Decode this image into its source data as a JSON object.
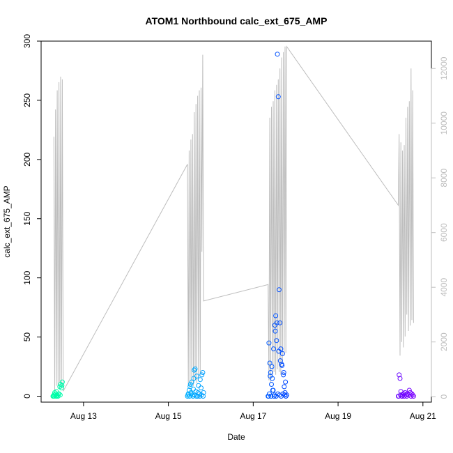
{
  "chart_data": {
    "type": "scatter",
    "title": "ATOM1 Northbound calc_ext_675_AMP",
    "xlabel": "Date",
    "ylabel": "calc_ext_675_AMP",
    "x_unit": "days in August",
    "xlim": [
      12.0,
      21.2
    ],
    "ylim": [
      -5,
      300
    ],
    "y_ticks": [
      0,
      50,
      100,
      150,
      200,
      250,
      300
    ],
    "x_ticks": [
      {
        "value": 13,
        "label": "Aug 13"
      },
      {
        "value": 15,
        "label": "Aug 15"
      },
      {
        "value": 17,
        "label": "Aug 17"
      },
      {
        "value": 19,
        "label": "Aug 19"
      },
      {
        "value": 21,
        "label": "Aug 21"
      }
    ],
    "y2lim": [
      -200,
      13000
    ],
    "y2_ticks": [
      0,
      2000,
      4000,
      6000,
      8000,
      10000,
      12000
    ],
    "grid": false,
    "colors": {
      "line": "#bdbdbd",
      "right_axis": "#bdbdbd",
      "points_start": "#00ffa6",
      "points_mid1": "#00bfff",
      "points_mid2": "#0040ff",
      "points_end": "#7a00ff"
    },
    "line_series": {
      "name": "",
      "x": [
        12.3,
        12.32,
        12.34,
        12.36,
        12.38,
        12.4,
        12.42,
        12.44,
        12.46,
        12.48,
        12.5,
        12.52,
        15.45,
        15.47,
        15.49,
        15.51,
        15.53,
        15.55,
        15.57,
        15.59,
        15.61,
        15.63,
        15.65,
        15.67,
        15.69,
        15.71,
        15.73,
        15.75,
        15.77,
        15.79,
        15.81,
        15.83,
        17.35,
        17.37,
        17.39,
        17.41,
        17.43,
        17.45,
        17.47,
        17.49,
        17.51,
        17.53,
        17.55,
        17.57,
        17.59,
        17.61,
        17.63,
        17.65,
        17.67,
        17.69,
        17.71,
        17.73,
        17.75,
        17.77,
        17.79,
        20.42,
        20.44,
        20.46,
        20.48,
        20.5,
        20.52,
        20.54,
        20.56,
        20.58,
        20.6,
        20.62,
        20.64,
        20.66,
        20.68,
        20.7,
        20.72,
        20.74,
        20.76,
        20.78
      ],
      "y": [
        9500,
        200,
        10500,
        400,
        11200,
        300,
        11500,
        500,
        11700,
        400,
        11600,
        200,
        8500,
        400,
        9000,
        300,
        9400,
        500,
        9600,
        400,
        10400,
        600,
        10700,
        500,
        11000,
        700,
        11200,
        800,
        11300,
        5300,
        12500,
        3500,
        4100,
        600,
        10200,
        500,
        10600,
        700,
        10800,
        900,
        11200,
        800,
        11400,
        1000,
        11600,
        900,
        12000,
        800,
        12400,
        1200,
        12600,
        1500,
        12800,
        1600,
        12800,
        7000,
        9600,
        1500,
        9300,
        2000,
        9000,
        1800,
        9200,
        2200,
        10200,
        3000,
        10600,
        2400,
        10800,
        2600,
        12000,
        2800,
        11200,
        2700
      ]
    },
    "scatter_series": [
      {
        "name": "",
        "x": [
          12.28,
          12.3,
          12.32,
          12.34,
          12.36,
          12.38,
          12.4,
          12.42,
          12.44,
          12.46,
          12.48,
          12.5,
          12.29,
          12.33,
          12.37,
          12.41,
          12.45,
          12.49,
          12.31,
          12.35
        ],
        "y": [
          0,
          1,
          3,
          2,
          4,
          1,
          0,
          2,
          8,
          10,
          7,
          12,
          0,
          1,
          0,
          2,
          1,
          9,
          0,
          0
        ]
      },
      {
        "name": "",
        "x": [
          15.45,
          15.47,
          15.49,
          15.51,
          15.53,
          15.55,
          15.57,
          15.59,
          15.61,
          15.63,
          15.65,
          15.67,
          15.69,
          15.71,
          15.73,
          15.75,
          15.77,
          15.79,
          15.81,
          15.83,
          15.46,
          15.5,
          15.54,
          15.58,
          15.62,
          15.66,
          15.7,
          15.74,
          15.78,
          15.82,
          15.52,
          15.6
        ],
        "y": [
          0,
          2,
          5,
          8,
          3,
          12,
          1,
          6,
          22,
          23,
          4,
          17,
          0,
          9,
          2,
          14,
          7,
          18,
          20,
          3,
          1,
          0,
          2,
          0,
          1,
          0,
          3,
          0,
          1,
          0,
          10,
          15
        ]
      },
      {
        "name": "",
        "x": [
          17.35,
          17.37,
          17.39,
          17.41,
          17.43,
          17.45,
          17.47,
          17.49,
          17.51,
          17.53,
          17.55,
          17.57,
          17.59,
          17.61,
          17.63,
          17.65,
          17.67,
          17.69,
          17.71,
          17.73,
          17.75,
          17.77,
          17.79,
          17.36,
          17.4,
          17.44,
          17.48,
          17.52,
          17.56,
          17.6,
          17.64,
          17.68,
          17.72,
          17.76,
          17.38,
          17.42,
          17.46,
          17.5,
          17.54,
          17.58,
          17.62,
          17.66,
          17.7,
          17.74
        ],
        "y": [
          0,
          45,
          28,
          20,
          10,
          15,
          5,
          0,
          60,
          68,
          47,
          289,
          253,
          90,
          62,
          40,
          27,
          36,
          18,
          8,
          3,
          0,
          1,
          0,
          17,
          25,
          40,
          55,
          62,
          38,
          30,
          26,
          20,
          12,
          2,
          0,
          5,
          1,
          0,
          2,
          1,
          0,
          2,
          1
        ]
      },
      {
        "name": "",
        "x": [
          20.42,
          20.44,
          20.46,
          20.48,
          20.5,
          20.52,
          20.54,
          20.56,
          20.58,
          20.6,
          20.62,
          20.64,
          20.66,
          20.68,
          20.7,
          20.72,
          20.74,
          20.76,
          20.78,
          20.43,
          20.47,
          20.51,
          20.55
        ],
        "y": [
          0,
          18,
          15,
          4,
          0,
          1,
          2,
          0,
          3,
          1,
          0,
          2,
          1,
          5,
          3,
          0,
          2,
          1,
          0,
          0,
          1,
          0,
          2
        ]
      }
    ]
  }
}
